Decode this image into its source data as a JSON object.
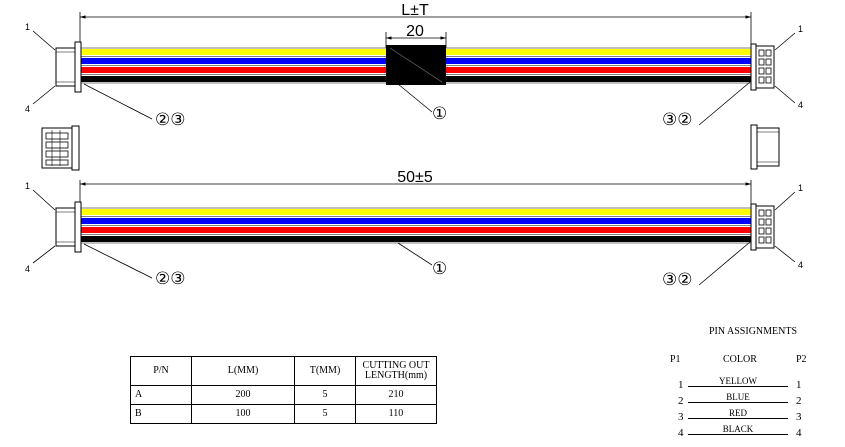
{
  "top_assembly": {
    "length_label": "L±T",
    "sleeve_label": "20",
    "left_callout_top": "1",
    "left_callout_bottom": "4",
    "right_callout_top": "1",
    "right_callout_bottom": "4",
    "left_balloon": "②③",
    "right_balloon": "③②",
    "center_balloon": "①"
  },
  "bottom_assembly": {
    "length_label": "50±5",
    "left_callout_top": "1",
    "left_callout_bottom": "4",
    "right_callout_top": "1",
    "right_callout_bottom": "4",
    "left_balloon": "②③",
    "right_balloon": "③②",
    "center_balloon": "①"
  },
  "wire_colors": {
    "yellow": "#ffff00",
    "blue": "#0000ff",
    "red": "#ff0000",
    "black": "#000000",
    "sleeve": "#000000"
  },
  "cutting_table": {
    "headers": [
      "P/N",
      "L(MM)",
      "T(MM)",
      "CUTTING OUT LENGTH(mm)"
    ],
    "rows": [
      [
        "A",
        "200",
        "5",
        "210"
      ],
      [
        "B",
        "100",
        "5",
        "110"
      ]
    ]
  },
  "pin_assignments": {
    "title": "PIN ASSIGNMENTS",
    "header_left": "P1",
    "header_center": "COLOR",
    "header_right": "P2",
    "rows": [
      {
        "p1": "1",
        "color": "YELLOW",
        "p2": "1"
      },
      {
        "p1": "2",
        "color": "BLUE",
        "p2": "2"
      },
      {
        "p1": "3",
        "color": "RED",
        "p2": "3"
      },
      {
        "p1": "4",
        "color": "BLACK",
        "p2": "4"
      }
    ]
  }
}
